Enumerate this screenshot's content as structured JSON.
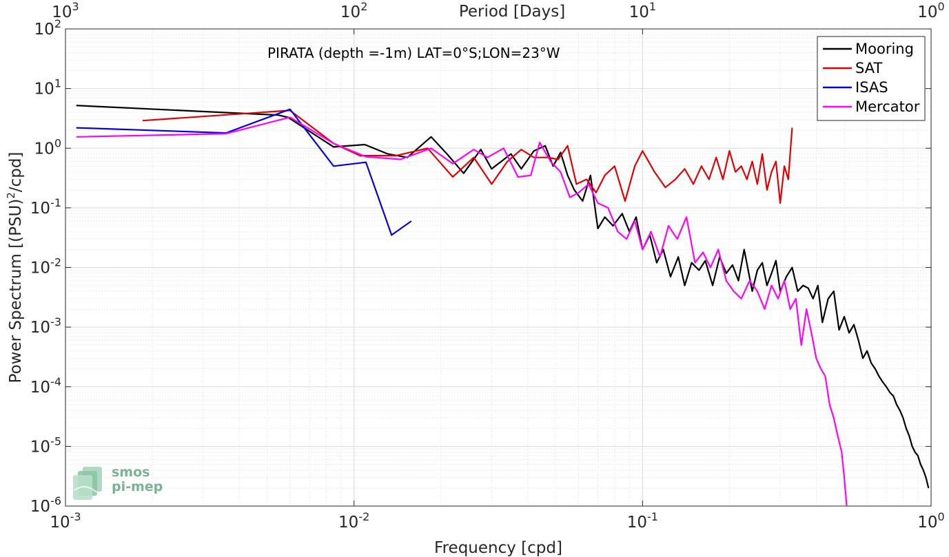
{
  "chart_data": {
    "type": "line",
    "title": "PIRATA (depth =-1m) LAT=0°S;LON=23°W",
    "xlabel": "Frequency [cpd]",
    "ylabel": "Power Spectrum [(PSU)",
    "ylabel_sup": "2",
    "ylabel_tail": "/cpd]",
    "x2label": "Period [Days]",
    "x_scale": "log",
    "y_scale": "log",
    "xlim": [
      0.001,
      1
    ],
    "ylim": [
      1e-06,
      100
    ],
    "grid": true,
    "legend_position": "top-right",
    "x_ticks": [
      {
        "base": "10",
        "exp": "-3",
        "value": 0.001
      },
      {
        "base": "10",
        "exp": "-2",
        "value": 0.01
      },
      {
        "base": "10",
        "exp": "-1",
        "value": 0.1
      },
      {
        "base": "10",
        "exp": "0",
        "value": 1
      }
    ],
    "x2_ticks": [
      {
        "base": "10",
        "exp": "3",
        "value": 0.001
      },
      {
        "base": "10",
        "exp": "2",
        "value": 0.01
      },
      {
        "base": "10",
        "exp": "1",
        "value": 0.1
      },
      {
        "base": "10",
        "exp": "0",
        "value": 1
      }
    ],
    "y_ticks": [
      {
        "base": "10",
        "exp": "2",
        "value": 100
      },
      {
        "base": "10",
        "exp": "1",
        "value": 10
      },
      {
        "base": "10",
        "exp": "0",
        "value": 1
      },
      {
        "base": "10",
        "exp": "-1",
        "value": 0.1
      },
      {
        "base": "10",
        "exp": "-2",
        "value": 0.01
      },
      {
        "base": "10",
        "exp": "-3",
        "value": 0.001
      },
      {
        "base": "10",
        "exp": "-4",
        "value": 0.0001
      },
      {
        "base": "10",
        "exp": "-5",
        "value": 1e-05
      },
      {
        "base": "10",
        "exp": "-6",
        "value": 1e-06
      }
    ],
    "series": [
      {
        "name": "Mooring",
        "color": "#000000",
        "x": [
          0.00109,
          0.00545,
          0.0059,
          0.0085,
          0.0109,
          0.0131,
          0.0153,
          0.0185,
          0.021,
          0.024,
          0.0275,
          0.03,
          0.035,
          0.038,
          0.042,
          0.046,
          0.049,
          0.052,
          0.055,
          0.058,
          0.062,
          0.066,
          0.07,
          0.074,
          0.079,
          0.085,
          0.09,
          0.095,
          0.1,
          0.106,
          0.112,
          0.118,
          0.125,
          0.133,
          0.14,
          0.148,
          0.157,
          0.165,
          0.175,
          0.185,
          0.195,
          0.205,
          0.215,
          0.225,
          0.24,
          0.25,
          0.26,
          0.27,
          0.28,
          0.29,
          0.3,
          0.315,
          0.33,
          0.345,
          0.36,
          0.375,
          0.39,
          0.405,
          0.42,
          0.44,
          0.46,
          0.48,
          0.5,
          0.52,
          0.54,
          0.56,
          0.58,
          0.6,
          0.62,
          0.64,
          0.66,
          0.68,
          0.7,
          0.72,
          0.74,
          0.76,
          0.78,
          0.8,
          0.82,
          0.84,
          0.86,
          0.88,
          0.9,
          0.92,
          0.94,
          0.96,
          0.98
        ],
        "y": [
          5.2,
          3.6,
          3.3,
          1.05,
          1.15,
          0.8,
          0.7,
          1.55,
          0.8,
          0.38,
          0.95,
          0.45,
          0.8,
          0.45,
          0.9,
          1.1,
          0.5,
          0.85,
          0.35,
          0.2,
          0.13,
          0.35,
          0.045,
          0.07,
          0.05,
          0.08,
          0.04,
          0.07,
          0.02,
          0.035,
          0.012,
          0.02,
          0.007,
          0.015,
          0.005,
          0.012,
          0.009,
          0.013,
          0.005,
          0.015,
          0.008,
          0.011,
          0.006,
          0.02,
          0.004,
          0.009,
          0.012,
          0.005,
          0.008,
          0.013,
          0.004,
          0.007,
          0.01,
          0.004,
          0.005,
          0.0045,
          0.003,
          0.005,
          0.0012,
          0.003,
          0.004,
          0.0009,
          0.0015,
          0.0008,
          0.0011,
          0.0006,
          0.0003,
          0.0004,
          0.00025,
          0.0002,
          0.00015,
          0.00012,
          0.0001,
          8e-05,
          7e-05,
          5e-05,
          4e-05,
          3e-05,
          2e-05,
          1.5e-05,
          1e-05,
          8e-06,
          7e-06,
          5e-06,
          4e-06,
          3e-06,
          2e-06
        ]
      },
      {
        "name": "SAT",
        "color": "#e00000",
        "x": [
          0.00185,
          0.006,
          0.0085,
          0.0105,
          0.014,
          0.018,
          0.022,
          0.026,
          0.03,
          0.034,
          0.038,
          0.042,
          0.047,
          0.051,
          0.055,
          0.059,
          0.064,
          0.069,
          0.074,
          0.08,
          0.087,
          0.094,
          0.1,
          0.11,
          0.12,
          0.13,
          0.14,
          0.15,
          0.16,
          0.17,
          0.18,
          0.19,
          0.2,
          0.21,
          0.22,
          0.23,
          0.24,
          0.25,
          0.26,
          0.27,
          0.28,
          0.29,
          0.3,
          0.31,
          0.32,
          0.33
        ],
        "y": [
          2.9,
          4.3,
          1.2,
          0.75,
          0.75,
          1.0,
          0.33,
          0.7,
          0.25,
          0.6,
          0.95,
          0.7,
          0.7,
          0.65,
          1.1,
          0.25,
          0.3,
          0.18,
          0.35,
          0.5,
          0.13,
          0.5,
          0.9,
          0.4,
          0.22,
          0.3,
          0.45,
          0.25,
          0.5,
          0.3,
          0.7,
          0.3,
          0.9,
          0.4,
          0.5,
          0.3,
          0.6,
          0.25,
          0.8,
          0.2,
          0.4,
          0.6,
          0.12,
          0.5,
          0.3,
          2.2
        ]
      },
      {
        "name": "ISAS",
        "color": "#0000e0",
        "x": [
          0.00109,
          0.0036,
          0.006,
          0.0085,
          0.011,
          0.0135,
          0.0158
        ],
        "y": [
          2.2,
          1.8,
          4.5,
          0.5,
          0.58,
          0.035,
          0.06
        ]
      },
      {
        "name": "Mercator",
        "color": "#ff00ff",
        "x": [
          0.00109,
          0.0036,
          0.006,
          0.0085,
          0.011,
          0.0145,
          0.0185,
          0.022,
          0.026,
          0.029,
          0.033,
          0.037,
          0.041,
          0.044,
          0.048,
          0.052,
          0.056,
          0.06,
          0.065,
          0.07,
          0.076,
          0.082,
          0.088,
          0.094,
          0.1,
          0.107,
          0.115,
          0.123,
          0.132,
          0.142,
          0.152,
          0.162,
          0.172,
          0.183,
          0.195,
          0.207,
          0.22,
          0.235,
          0.25,
          0.265,
          0.28,
          0.295,
          0.31,
          0.325,
          0.34,
          0.355,
          0.37,
          0.385,
          0.4,
          0.415,
          0.43,
          0.445,
          0.46,
          0.475,
          0.49,
          0.5,
          0.51
        ],
        "y": [
          1.55,
          1.75,
          3.3,
          1.2,
          0.72,
          0.65,
          1.0,
          0.55,
          0.95,
          0.7,
          1.0,
          0.33,
          0.35,
          1.25,
          0.6,
          0.4,
          0.15,
          0.18,
          0.25,
          0.12,
          0.1,
          0.04,
          0.03,
          0.06,
          0.02,
          0.04,
          0.015,
          0.05,
          0.03,
          0.07,
          0.012,
          0.018,
          0.01,
          0.02,
          0.006,
          0.004,
          0.003,
          0.006,
          0.004,
          0.002,
          0.005,
          0.003,
          0.006,
          0.002,
          0.003,
          0.0005,
          0.002,
          0.0008,
          0.0003,
          0.0002,
          0.00015,
          5e-05,
          3e-05,
          1.5e-05,
          8e-06,
          3e-06,
          1e-06
        ]
      }
    ]
  },
  "logo": {
    "line1": "smos",
    "line2": "pi-mep",
    "color": "#79b394"
  }
}
